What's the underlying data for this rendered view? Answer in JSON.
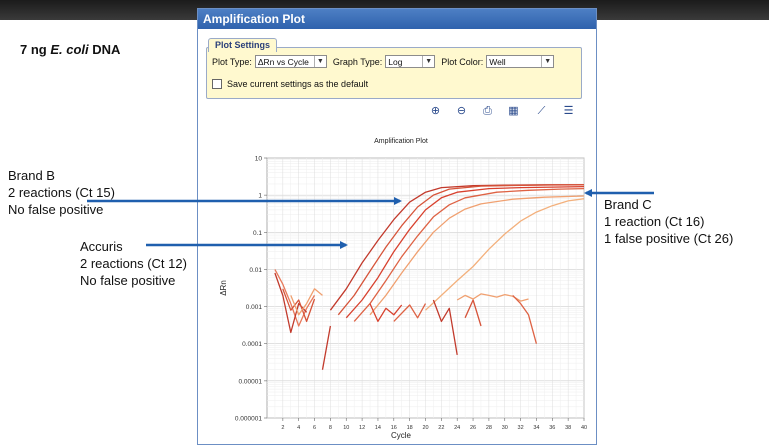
{
  "slide": {
    "title_prefix": "7 ng ",
    "title_italic": "E. coli",
    "title_suffix": " DNA"
  },
  "annotations": {
    "brand_b": [
      "Brand B",
      "2 reactions (Ct 15)",
      "No false positive"
    ],
    "accuris": [
      "Accuris",
      "2 reactions (Ct 12)",
      "No false positive"
    ],
    "brand_c": [
      "Brand C",
      "1 reaction (Ct 16)",
      "1 false positive (Ct 26)"
    ]
  },
  "window": {
    "title": "Amplification Plot",
    "settings_tab": "Plot Settings",
    "plot_type_label": "Plot Type:",
    "plot_type_value": "ΔRn vs Cycle",
    "graph_type_label": "Graph Type:",
    "graph_type_value": "Log",
    "plot_color_label": "Plot Color:",
    "plot_color_value": "Well",
    "save_default_label": "Save current settings as the default"
  },
  "toolbar_icons": [
    "zoom-in-icon",
    "zoom-out-icon",
    "print-icon",
    "export-icon",
    "chart-icon",
    "legend-icon"
  ],
  "chart_data": {
    "type": "line",
    "title": "Amplification Plot",
    "xlabel": "Cycle",
    "ylabel": "ΔRn",
    "xlim": [
      0,
      40
    ],
    "ylim": [
      1e-06,
      10
    ],
    "yscale": "log",
    "x_ticks": [
      2,
      4,
      6,
      8,
      10,
      12,
      14,
      16,
      18,
      20,
      22,
      24,
      26,
      28,
      30,
      32,
      34,
      36,
      38,
      40
    ],
    "y_ticks": [
      10,
      1,
      0.1,
      0.01,
      0.001,
      0.0001,
      1e-05,
      1e-06
    ],
    "y_tick_labels": [
      "10",
      "1",
      "0.1",
      "0.01",
      "0.001",
      "0.0001",
      "0.00001",
      "0.000001"
    ],
    "grid": true,
    "series": [
      {
        "color": "#c23a2c",
        "x": [
          8,
          10,
          12,
          14,
          16,
          18,
          20,
          22,
          26,
          30,
          35,
          40
        ],
        "y": [
          0.0008,
          0.003,
          0.015,
          0.06,
          0.22,
          0.65,
          1.2,
          1.6,
          1.8,
          1.85,
          1.9,
          1.9
        ]
      },
      {
        "color": "#d6543a",
        "x": [
          9,
          11,
          13,
          15,
          17,
          19,
          21,
          23,
          27,
          31,
          36,
          40
        ],
        "y": [
          0.0006,
          0.002,
          0.009,
          0.04,
          0.15,
          0.48,
          1.0,
          1.45,
          1.75,
          1.82,
          1.88,
          1.9
        ]
      },
      {
        "color": "#d8412e",
        "x": [
          10,
          12,
          14,
          16,
          18,
          20,
          22,
          24,
          28,
          32,
          36,
          40
        ],
        "y": [
          0.0005,
          0.0015,
          0.006,
          0.03,
          0.12,
          0.4,
          0.85,
          1.2,
          1.5,
          1.6,
          1.65,
          1.7
        ]
      },
      {
        "color": "#de6244",
        "x": [
          11,
          13,
          15,
          17,
          19,
          21,
          23,
          25,
          29,
          33,
          37,
          40
        ],
        "y": [
          0.0004,
          0.0012,
          0.005,
          0.022,
          0.08,
          0.26,
          0.55,
          0.85,
          1.2,
          1.35,
          1.45,
          1.5
        ]
      },
      {
        "color": "#f0a070",
        "x": [
          13,
          15,
          17,
          19,
          21,
          23,
          25,
          27,
          31,
          35,
          40
        ],
        "y": [
          0.0006,
          0.002,
          0.008,
          0.03,
          0.1,
          0.24,
          0.42,
          0.58,
          0.78,
          0.88,
          0.95
        ]
      },
      {
        "color": "#f3b07c",
        "x": [
          20,
          22,
          24,
          26,
          28,
          30,
          32,
          34,
          36,
          38,
          40
        ],
        "y": [
          0.0008,
          0.002,
          0.005,
          0.012,
          0.035,
          0.09,
          0.2,
          0.35,
          0.52,
          0.7,
          0.8
        ]
      },
      {
        "color": "#e8795a",
        "x": [
          1,
          2,
          3,
          4,
          5,
          6
        ],
        "y": [
          0.01,
          0.004,
          0.0012,
          0.0003,
          0.0009,
          0.002
        ]
      },
      {
        "color": "#c23a2c",
        "x": [
          1,
          2,
          3,
          4,
          5
        ],
        "y": [
          0.008,
          0.002,
          0.0002,
          0.0012,
          0.0007
        ]
      },
      {
        "color": "#d6543a",
        "x": [
          2,
          3,
          4,
          5,
          6
        ],
        "y": [
          0.003,
          0.0008,
          0.0015,
          0.0004,
          0.0016
        ]
      },
      {
        "color": "#f0a070",
        "x": [
          3,
          4,
          5,
          6,
          7
        ],
        "y": [
          0.002,
          0.0006,
          0.0012,
          0.003,
          0.002
        ]
      },
      {
        "color": "#c23a2c",
        "x": [
          7,
          8
        ],
        "y": [
          2e-05,
          0.0003
        ]
      },
      {
        "color": "#d8412e",
        "x": [
          13,
          14,
          15,
          16,
          17
        ],
        "y": [
          0.0012,
          0.0004,
          0.0009,
          0.0006,
          0.0011
        ]
      },
      {
        "color": "#de6244",
        "x": [
          16,
          18,
          19,
          20
        ],
        "y": [
          0.0004,
          0.0011,
          0.0005,
          0.0012
        ]
      },
      {
        "color": "#c23a2c",
        "x": [
          21,
          22,
          23,
          24
        ],
        "y": [
          0.0015,
          0.0004,
          0.0009,
          5e-05
        ]
      },
      {
        "color": "#d6543a",
        "x": [
          25,
          26,
          27
        ],
        "y": [
          0.0005,
          0.0015,
          0.0003
        ]
      },
      {
        "color": "#f0a070",
        "x": [
          24,
          25,
          26,
          27,
          28,
          29,
          30,
          31,
          32,
          33
        ],
        "y": [
          0.0015,
          0.002,
          0.0016,
          0.0022,
          0.002,
          0.0018,
          0.0021,
          0.0019,
          0.0014,
          0.0016
        ]
      },
      {
        "color": "#de6244",
        "x": [
          31,
          32,
          33,
          34
        ],
        "y": [
          0.002,
          0.0012,
          0.0006,
          0.0001
        ]
      }
    ]
  }
}
